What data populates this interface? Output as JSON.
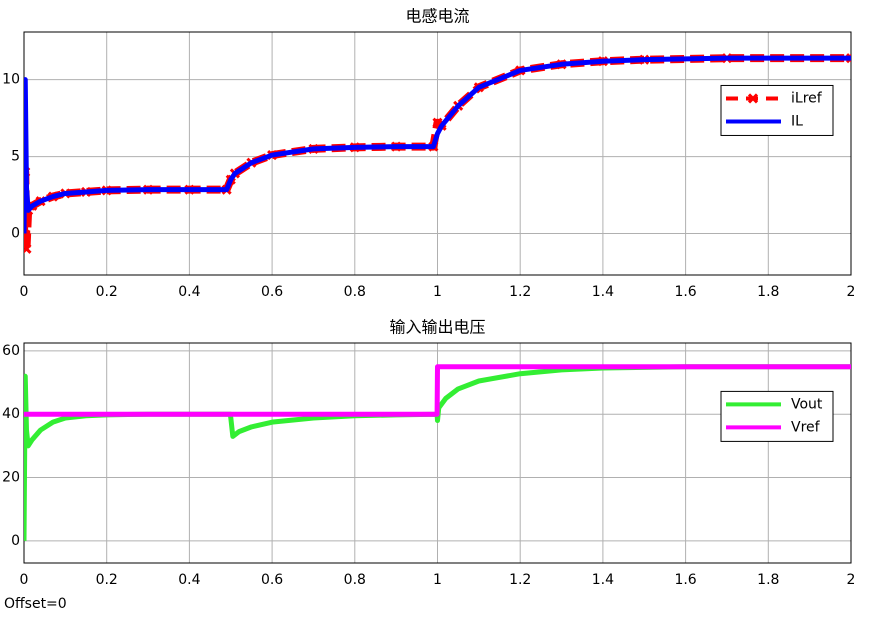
{
  "chart_data": [
    {
      "type": "line",
      "title": "电感电流",
      "x": [
        0,
        0.003,
        0.006,
        0.01,
        0.02,
        0.04,
        0.07,
        0.1,
        0.15,
        0.2,
        0.3,
        0.4,
        0.49,
        0.5,
        0.51,
        0.55,
        0.6,
        0.7,
        0.8,
        0.9,
        0.99,
        1.0,
        1.01,
        1.05,
        1.1,
        1.2,
        1.3,
        1.4,
        1.5,
        1.7,
        2.0
      ],
      "series": [
        {
          "name": "iLref",
          "color": "#ff0000",
          "dashed": true,
          "marker": "x",
          "values": [
            0,
            4,
            -1,
            1.5,
            1.8,
            2.1,
            2.4,
            2.6,
            2.7,
            2.8,
            2.85,
            2.85,
            2.85,
            3.5,
            3.9,
            4.6,
            5.1,
            5.5,
            5.6,
            5.65,
            5.65,
            7.2,
            7.0,
            8.3,
            9.5,
            10.6,
            11.0,
            11.2,
            11.3,
            11.4,
            11.4
          ]
        },
        {
          "name": "IL",
          "color": "#0000ff",
          "values": [
            0,
            10,
            3,
            1.5,
            1.8,
            2.1,
            2.4,
            2.6,
            2.7,
            2.8,
            2.85,
            2.85,
            2.85,
            3.5,
            3.9,
            4.6,
            5.1,
            5.5,
            5.6,
            5.65,
            5.65,
            6.5,
            7.0,
            8.3,
            9.5,
            10.6,
            11.0,
            11.2,
            11.3,
            11.4,
            11.4
          ]
        }
      ],
      "xlim": [
        0,
        2
      ],
      "xticks": [
        0,
        0.2,
        0.4,
        0.6,
        0.8,
        1,
        1.2,
        1.4,
        1.6,
        1.8,
        2
      ],
      "ylim": [
        -2.7,
        13.1
      ],
      "yticks": [
        0,
        5,
        10
      ],
      "grid": true,
      "legend": "right"
    },
    {
      "type": "line",
      "title": "输入输出电压",
      "x": [
        0,
        0.003,
        0.006,
        0.01,
        0.02,
        0.04,
        0.07,
        0.1,
        0.15,
        0.2,
        0.3,
        0.4,
        0.499,
        0.5,
        0.505,
        0.52,
        0.55,
        0.6,
        0.7,
        0.8,
        0.9,
        0.999,
        1.0,
        1.003,
        1.02,
        1.05,
        1.1,
        1.2,
        1.3,
        1.4,
        1.6,
        2.0
      ],
      "series": [
        {
          "name": "Vout",
          "color": "#33ee33",
          "values": [
            0,
            52,
            35,
            30,
            32,
            35,
            37.5,
            38.8,
            39.5,
            39.8,
            40,
            40,
            40,
            39,
            33,
            34.5,
            36,
            37.5,
            38.8,
            39.5,
            39.8,
            40,
            38,
            42,
            45,
            48,
            50.5,
            52.8,
            54,
            54.6,
            55,
            55
          ]
        },
        {
          "name": "Vref",
          "color": "#ff00ff",
          "values": [
            40,
            40,
            40,
            40,
            40,
            40,
            40,
            40,
            40,
            40,
            40,
            40,
            40,
            40,
            40,
            40,
            40,
            40,
            40,
            40,
            40,
            40,
            55,
            55,
            55,
            55,
            55,
            55,
            55,
            55,
            55,
            55
          ]
        }
      ],
      "xlim": [
        0,
        2
      ],
      "xticks": [
        0,
        0.2,
        0.4,
        0.6,
        0.8,
        1,
        1.2,
        1.4,
        1.6,
        1.8,
        2
      ],
      "ylim": [
        -7,
        62.5
      ],
      "yticks": [
        0,
        20,
        40,
        60
      ],
      "grid": true,
      "legend": "right"
    }
  ],
  "footer": "Offset=0"
}
